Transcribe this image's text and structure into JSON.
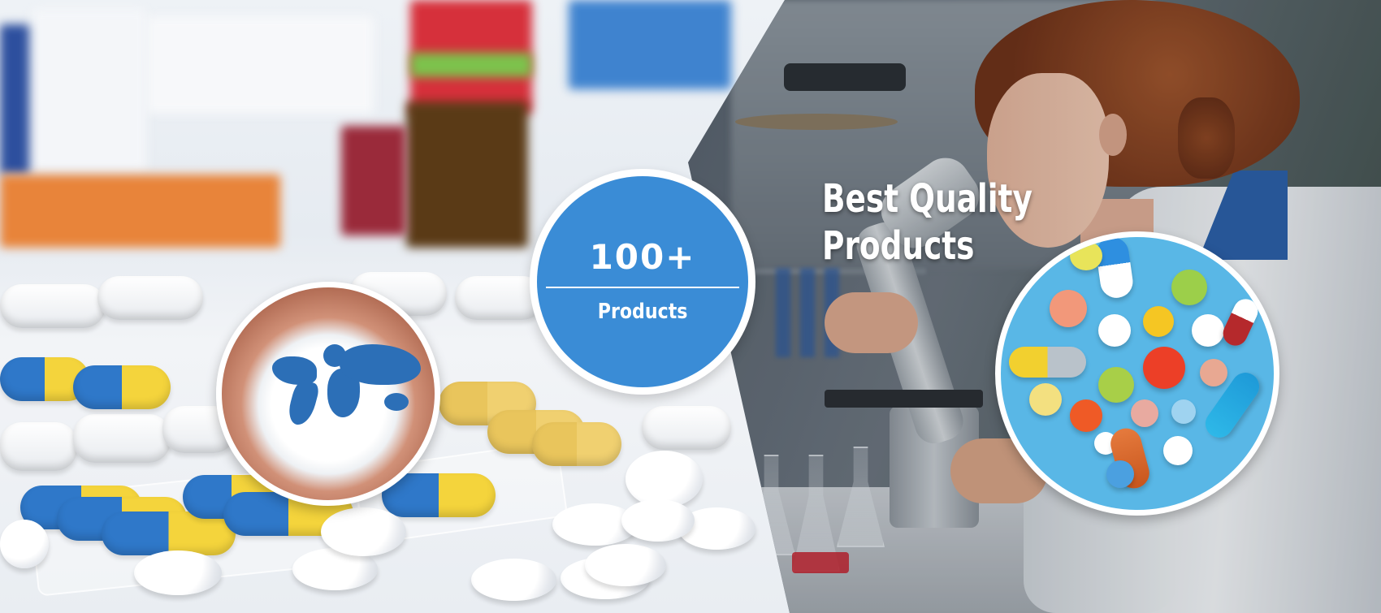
{
  "badge": {
    "count": "100+",
    "label": "Products",
    "color": "#3a8cd6"
  },
  "heading": {
    "line1": "Best Quality",
    "line2": "Products"
  },
  "images": {
    "left_background": "pharmacy-pills-photo",
    "right_background": "lab-microscope-photo",
    "inset_left": "powder-world-map-photo",
    "inset_right": "colorful-pills-photo"
  }
}
